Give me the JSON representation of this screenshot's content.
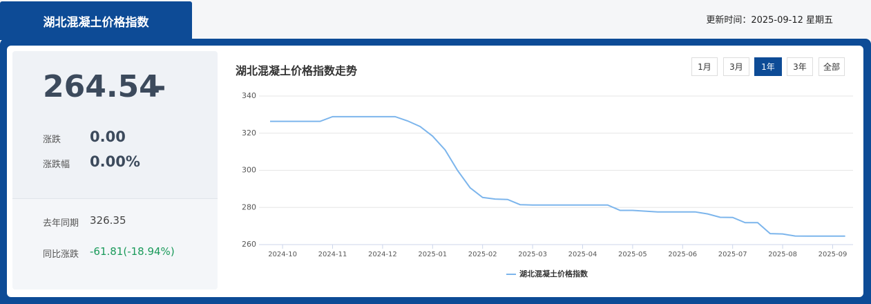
{
  "header": {
    "title": "湖北混凝土价格指数",
    "update_time": "更新时间：2025-09-12 星期五"
  },
  "summary": {
    "index": 264.54,
    "direction": "-",
    "change_label": "涨跌",
    "change": "0.00",
    "change_pct_label": "涨跌幅",
    "change_pct": "0.00%",
    "last_year_label": "去年同期",
    "last_year": "326.35",
    "yoy_label": "同比涨跌",
    "yoy": "-61.81(-18.94%)"
  },
  "ranges": [
    "1月",
    "3月",
    "1年",
    "3年",
    "全部"
  ],
  "active_range": 2,
  "chart_data": {
    "type": "line",
    "title": "湖北混凝土价格指数走势",
    "categories": [
      null,
      "2024-10",
      null,
      null,
      null,
      "2024-11",
      null,
      null,
      null,
      "2024-12",
      null,
      null,
      null,
      "2025-01",
      null,
      null,
      null,
      "2025-02",
      null,
      null,
      null,
      "2025-03",
      null,
      null,
      null,
      "2025-04",
      null,
      null,
      null,
      "2025-05",
      null,
      null,
      null,
      "2025-06",
      null,
      null,
      null,
      "2025-07",
      null,
      null,
      null,
      "2025-08",
      null,
      null,
      null,
      "2025-09",
      null
    ],
    "series": [
      {
        "name": "湖北混凝土价格指数",
        "color": "#7cb5ec",
        "values": [
          326.35,
          326.35,
          326.35,
          326.35,
          326.35,
          328.9,
          328.9,
          328.9,
          328.9,
          328.9,
          328.9,
          326.6,
          323.6,
          318.4,
          311,
          299.9,
          290.6,
          285.4,
          284.5,
          284.3,
          281.5,
          281.3,
          281.3,
          281.3,
          281.3,
          281.3,
          281.3,
          281.3,
          278.4,
          278.4,
          278,
          277.6,
          277.6,
          277.6,
          277.6,
          276.5,
          274.7,
          274.6,
          271.8,
          271.8,
          265.9,
          265.7,
          264.6,
          264.54,
          264.54,
          264.54,
          264.54
        ]
      }
    ],
    "ylim": [
      260,
      340
    ],
    "yticks": [
      260,
      280,
      300,
      320,
      340
    ],
    "grid": true,
    "legend": "bottom"
  }
}
